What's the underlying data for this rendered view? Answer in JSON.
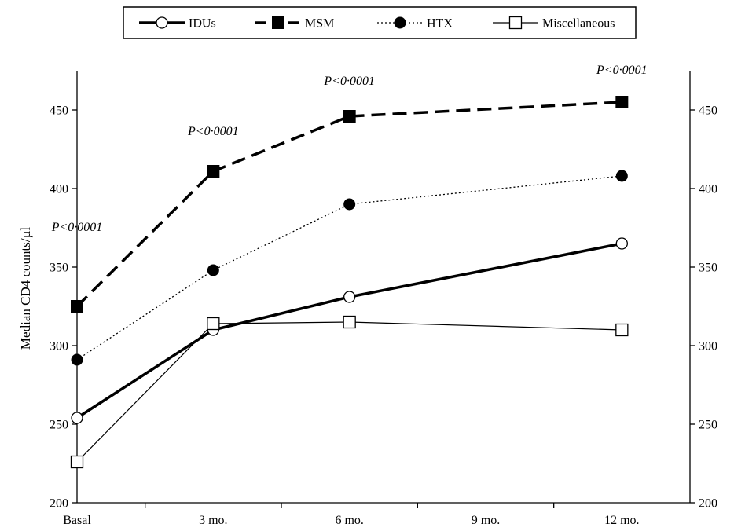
{
  "chart_data": {
    "type": "line",
    "title": "",
    "xlabel": "",
    "ylabel": "Median CD4 counts/µl",
    "categories": [
      "Basal",
      "3 mo.",
      "6 mo.",
      "9 mo.",
      "12 mo."
    ],
    "x_months": [
      0,
      3,
      6,
      9,
      12
    ],
    "ylim": [
      200,
      475
    ],
    "yticks": [
      200,
      250,
      300,
      350,
      400,
      450
    ],
    "secondary_y_axis": true,
    "grid": false,
    "legend_position": "top",
    "series": [
      {
        "name": "IDUs",
        "style": "solid-thick",
        "marker": "open-circle",
        "x": [
          0,
          3,
          6,
          12
        ],
        "values": [
          254,
          310,
          331,
          365
        ]
      },
      {
        "name": "MSM",
        "style": "dashed-thick",
        "marker": "filled-square",
        "x": [
          0,
          3,
          6,
          12
        ],
        "values": [
          325,
          411,
          446,
          455
        ]
      },
      {
        "name": "HTX",
        "style": "dotted",
        "marker": "filled-circle",
        "x": [
          0,
          3,
          6,
          12
        ],
        "values": [
          291,
          348,
          390,
          408
        ]
      },
      {
        "name": "Miscellaneous",
        "style": "solid-thin",
        "marker": "open-square",
        "x": [
          0,
          3,
          6,
          12
        ],
        "values": [
          226,
          314,
          315,
          310
        ]
      }
    ],
    "annotations": [
      {
        "text": "P<0·0001",
        "x": 0,
        "y": 373
      },
      {
        "text": "P<0·0001",
        "x": 3,
        "y": 434
      },
      {
        "text": "P<0·0001",
        "x": 6,
        "y": 466
      },
      {
        "text": "P<0·0001",
        "x": 12,
        "y": 473
      }
    ],
    "colors": {
      "line": "#000000",
      "background": "#ffffff"
    }
  }
}
